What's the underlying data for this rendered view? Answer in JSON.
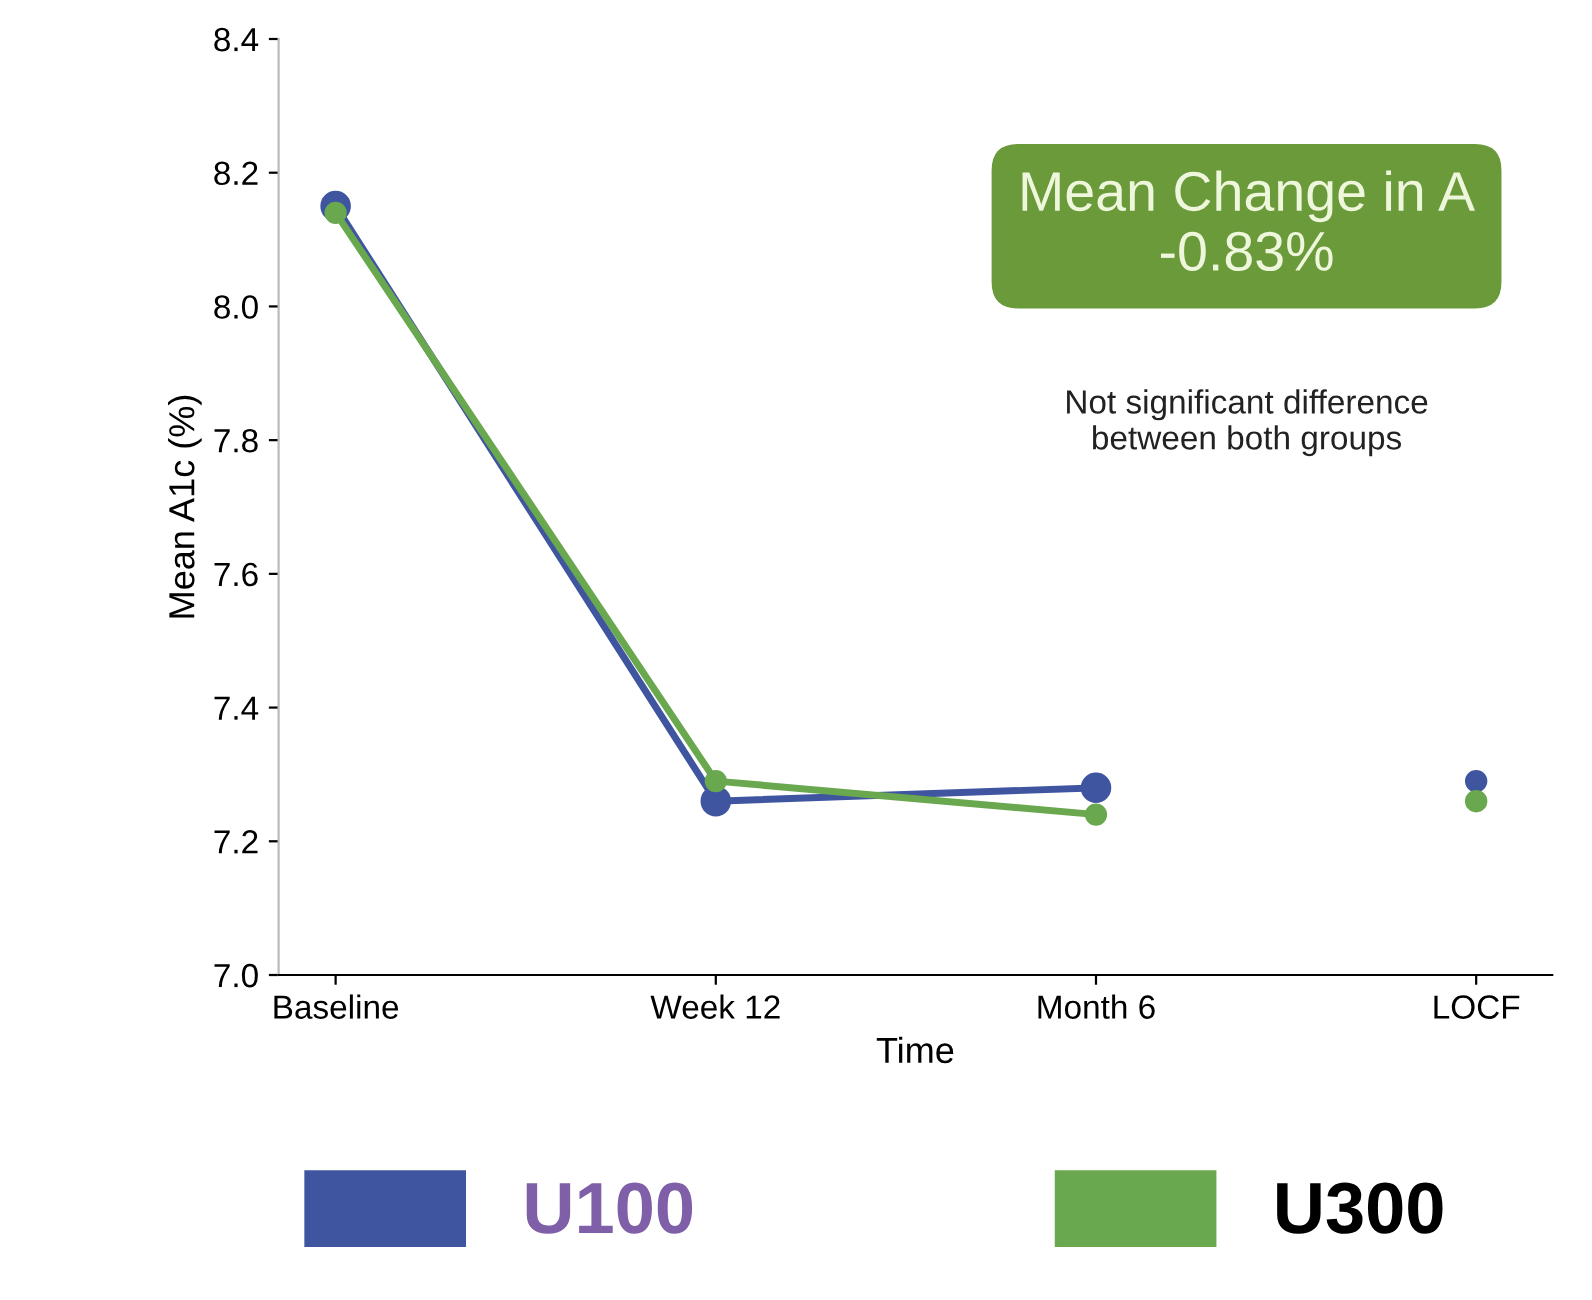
{
  "chart_data": {
    "type": "line",
    "xlabel": "Time",
    "ylabel": "Mean A1c (%)",
    "categories": [
      "Baseline",
      "Week 12",
      "Month 6",
      "LOCF"
    ],
    "series": [
      {
        "name": "U100",
        "color": "#3f55a0",
        "values": [
          8.15,
          7.26,
          7.28,
          null
        ]
      },
      {
        "name": "U300",
        "color": "#6aa84f",
        "values": [
          8.14,
          7.29,
          7.24,
          null
        ]
      },
      {
        "type": "scatter",
        "color": "#3f55a0",
        "values": [
          null,
          null,
          null,
          7.29
        ]
      },
      {
        "type": "scatter",
        "color": "#6aa84f",
        "values": [
          null,
          null,
          null,
          7.26
        ]
      }
    ],
    "ylim": [
      7.0,
      8.4
    ],
    "yticks": [
      {
        "value": 7.0,
        "label": "7.0"
      },
      {
        "value": 7.2,
        "label": "7.2"
      },
      {
        "value": 7.4,
        "label": "7.4"
      },
      {
        "value": 7.6,
        "label": "7.6"
      },
      {
        "value": 7.8,
        "label": "7.8"
      },
      {
        "value": 8.0,
        "label": "8.0"
      },
      {
        "value": 8.2,
        "label": "8.2"
      },
      {
        "value": 8.4,
        "label": "8.4"
      }
    ],
    "annotations": [
      "Mean Change in A\n-0.83%",
      "Not significant difference\nbetween both groups"
    ],
    "marker": "circle",
    "line_style": "solid",
    "grid": false,
    "legend": "bottom"
  }
}
